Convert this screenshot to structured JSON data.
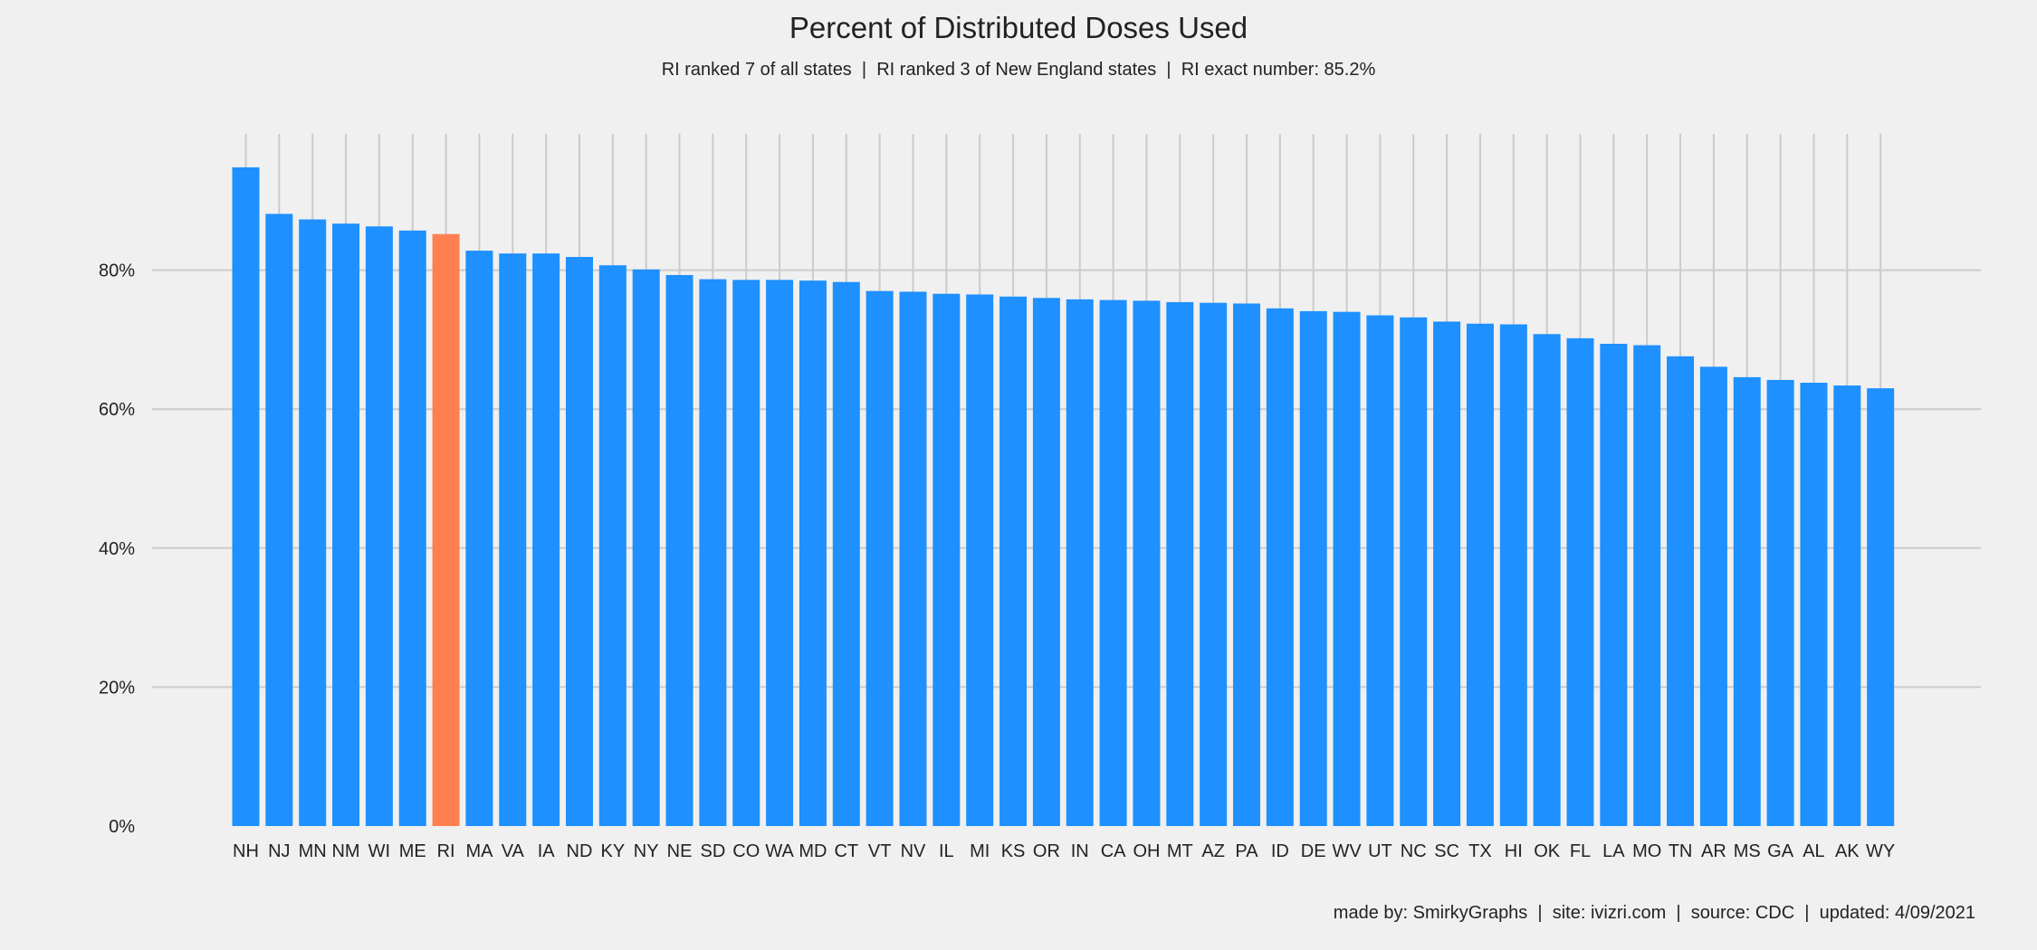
{
  "chart_data": {
    "type": "bar",
    "title": "Percent of Distributed Doses Used",
    "subtitle": "RI ranked 7 of all states  |  RI ranked 3 of New England states  |  RI exact number: 85.2%",
    "xlabel": "",
    "ylabel": "",
    "ylim": [
      0,
      100
    ],
    "yticks": [
      0,
      20,
      40,
      60,
      80
    ],
    "ytick_labels": [
      "0%",
      "20%",
      "40%",
      "60%",
      "80%"
    ],
    "grid": true,
    "highlight": "RI",
    "categories": [
      "NH",
      "NJ",
      "MN",
      "NM",
      "WI",
      "ME",
      "RI",
      "MA",
      "VA",
      "IA",
      "ND",
      "KY",
      "NY",
      "NE",
      "SD",
      "CO",
      "WA",
      "MD",
      "CT",
      "VT",
      "NV",
      "IL",
      "MI",
      "KS",
      "OR",
      "IN",
      "CA",
      "OH",
      "MT",
      "AZ",
      "PA",
      "ID",
      "DE",
      "WV",
      "UT",
      "NC",
      "SC",
      "TX",
      "HI",
      "OK",
      "FL",
      "LA",
      "MO",
      "TN",
      "AR",
      "MS",
      "GA",
      "AL",
      "AK",
      "WY"
    ],
    "values": [
      94.8,
      88.1,
      87.3,
      86.7,
      86.3,
      85.7,
      85.2,
      82.8,
      82.4,
      82.4,
      81.9,
      80.7,
      80.1,
      79.3,
      78.7,
      78.6,
      78.6,
      78.5,
      78.3,
      77.0,
      76.9,
      76.6,
      76.5,
      76.2,
      76.0,
      75.8,
      75.7,
      75.6,
      75.4,
      75.3,
      75.2,
      74.5,
      74.1,
      74.0,
      73.5,
      73.2,
      72.6,
      72.3,
      72.2,
      70.8,
      70.2,
      69.4,
      69.2,
      67.6,
      66.1,
      64.6,
      64.2,
      63.8,
      63.4,
      63.0
    ]
  },
  "colors": {
    "bar": "#1e90ff",
    "highlight": "#ff7f50",
    "grid": "#cbcbcb",
    "background": "#f0f0f0"
  },
  "footer": "made by: SmirkyGraphs  |  site: ivizri.com  |  source: CDC  |  updated: 4/09/2021"
}
